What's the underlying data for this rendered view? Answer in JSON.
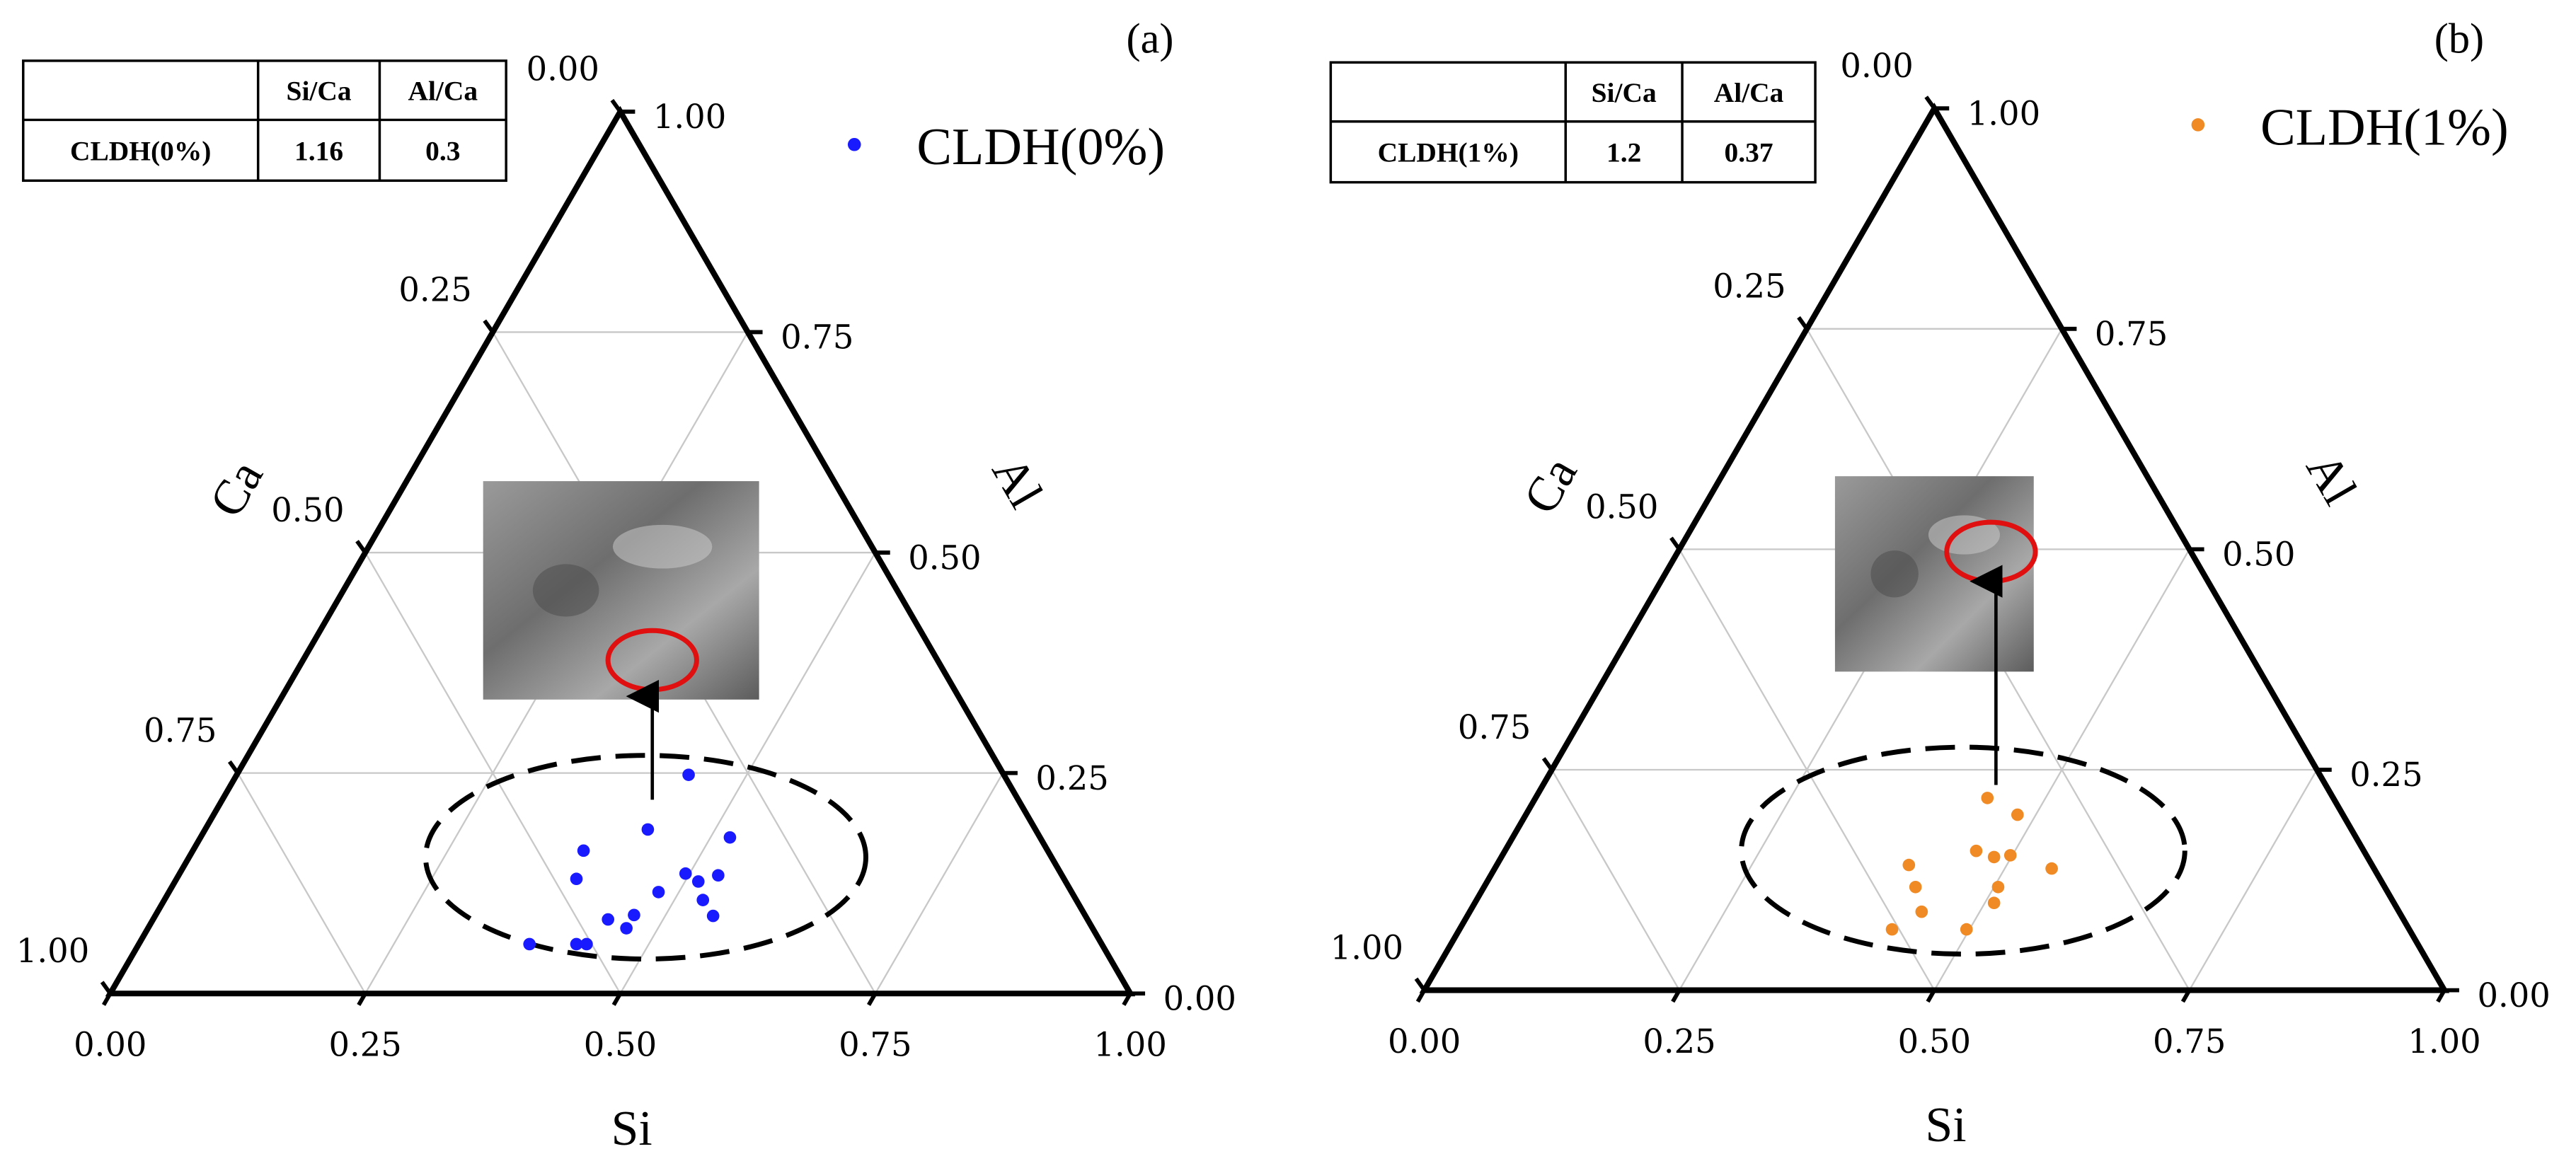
{
  "chart_data": [
    {
      "type": "ternary",
      "panel_label": "(a)",
      "axes": {
        "si": {
          "title": "Si",
          "ticks": [
            {
              "value": 0,
              "label": "0.00"
            },
            {
              "value": 0.25,
              "label": "0.25"
            },
            {
              "value": 0.5,
              "label": "0.50"
            },
            {
              "value": 0.75,
              "label": "0.75"
            },
            {
              "value": 1,
              "label": "1.00"
            }
          ]
        },
        "al": {
          "title": "Al",
          "ticks": [
            {
              "value": 0,
              "label": "0.00"
            },
            {
              "value": 0.25,
              "label": "0.25"
            },
            {
              "value": 0.5,
              "label": "0.50"
            },
            {
              "value": 0.75,
              "label": "0.75"
            },
            {
              "value": 1,
              "label": "1.00"
            }
          ]
        },
        "ca": {
          "title": "Ca",
          "ticks": [
            {
              "value": 0,
              "label": "0.00"
            },
            {
              "value": 0.25,
              "label": "0.25"
            },
            {
              "value": 0.5,
              "label": "0.50"
            },
            {
              "value": 0.75,
              "label": "0.75"
            },
            {
              "value": 1,
              "label": "1.00"
            }
          ]
        }
      },
      "grid": true,
      "series": [
        {
          "name": "CLDH(0%)",
          "color": "#1a1aff",
          "si": [
            0.443,
            0.434,
            0.519,
            0.383,
            0.496,
            0.392,
            0.529,
            0.48,
            0.513,
            0.528,
            0.469,
            0.446,
            0.547,
            0.469,
            0.383,
            0.429,
            0.439
          ],
          "al": [
            0.248,
            0.186,
            0.177,
            0.162,
            0.136,
            0.13,
            0.134,
            0.115,
            0.127,
            0.106,
            0.089,
            0.084,
            0.088,
            0.074,
            0.056,
            0.056,
            0.056
          ]
        }
      ],
      "table": {
        "columns": [
          "Si/Ca",
          "Al/Ca"
        ],
        "rows": [
          [
            1.16,
            0.3
          ]
        ]
      }
    },
    {
      "type": "ternary",
      "panel_label": "(b)",
      "axes": {
        "si": {
          "title": "Si",
          "ticks": [
            {
              "value": 0,
              "label": "0.00"
            },
            {
              "value": 0.25,
              "label": "0.25"
            },
            {
              "value": 0.5,
              "label": "0.50"
            },
            {
              "value": 0.75,
              "label": "0.75"
            },
            {
              "value": 1,
              "label": "1.00"
            }
          ]
        },
        "al": {
          "title": "Al",
          "ticks": [
            {
              "value": 0,
              "label": "0.00"
            },
            {
              "value": 0.25,
              "label": "0.25"
            },
            {
              "value": 0.5,
              "label": "0.50"
            },
            {
              "value": 0.75,
              "label": "0.75"
            },
            {
              "value": 1,
              "label": "1.00"
            }
          ]
        },
        "ca": {
          "title": "Ca",
          "ticks": [
            {
              "value": 0,
              "label": "0.00"
            },
            {
              "value": 0.25,
              "label": "0.25"
            },
            {
              "value": 0.5,
              "label": "0.50"
            },
            {
              "value": 0.75,
              "label": "0.75"
            },
            {
              "value": 1,
              "label": "1.00"
            }
          ]
        }
      },
      "grid": true,
      "series": [
        {
          "name": "CLDH(1%)",
          "color": "#f08a24",
          "si": [
            0.443,
            0.482,
            0.462,
            0.483,
            0.498,
            0.546,
            0.404,
            0.423,
            0.504,
            0.509,
            0.443,
            0.424,
            0.497
          ],
          "al": [
            0.218,
            0.199,
            0.158,
            0.151,
            0.153,
            0.138,
            0.142,
            0.117,
            0.117,
            0.099,
            0.089,
            0.069,
            0.069
          ]
        }
      ],
      "table": {
        "columns": [
          "Si/Ca",
          "Al/Ca"
        ],
        "rows": [
          [
            1.2,
            0.37
          ]
        ]
      }
    }
  ]
}
